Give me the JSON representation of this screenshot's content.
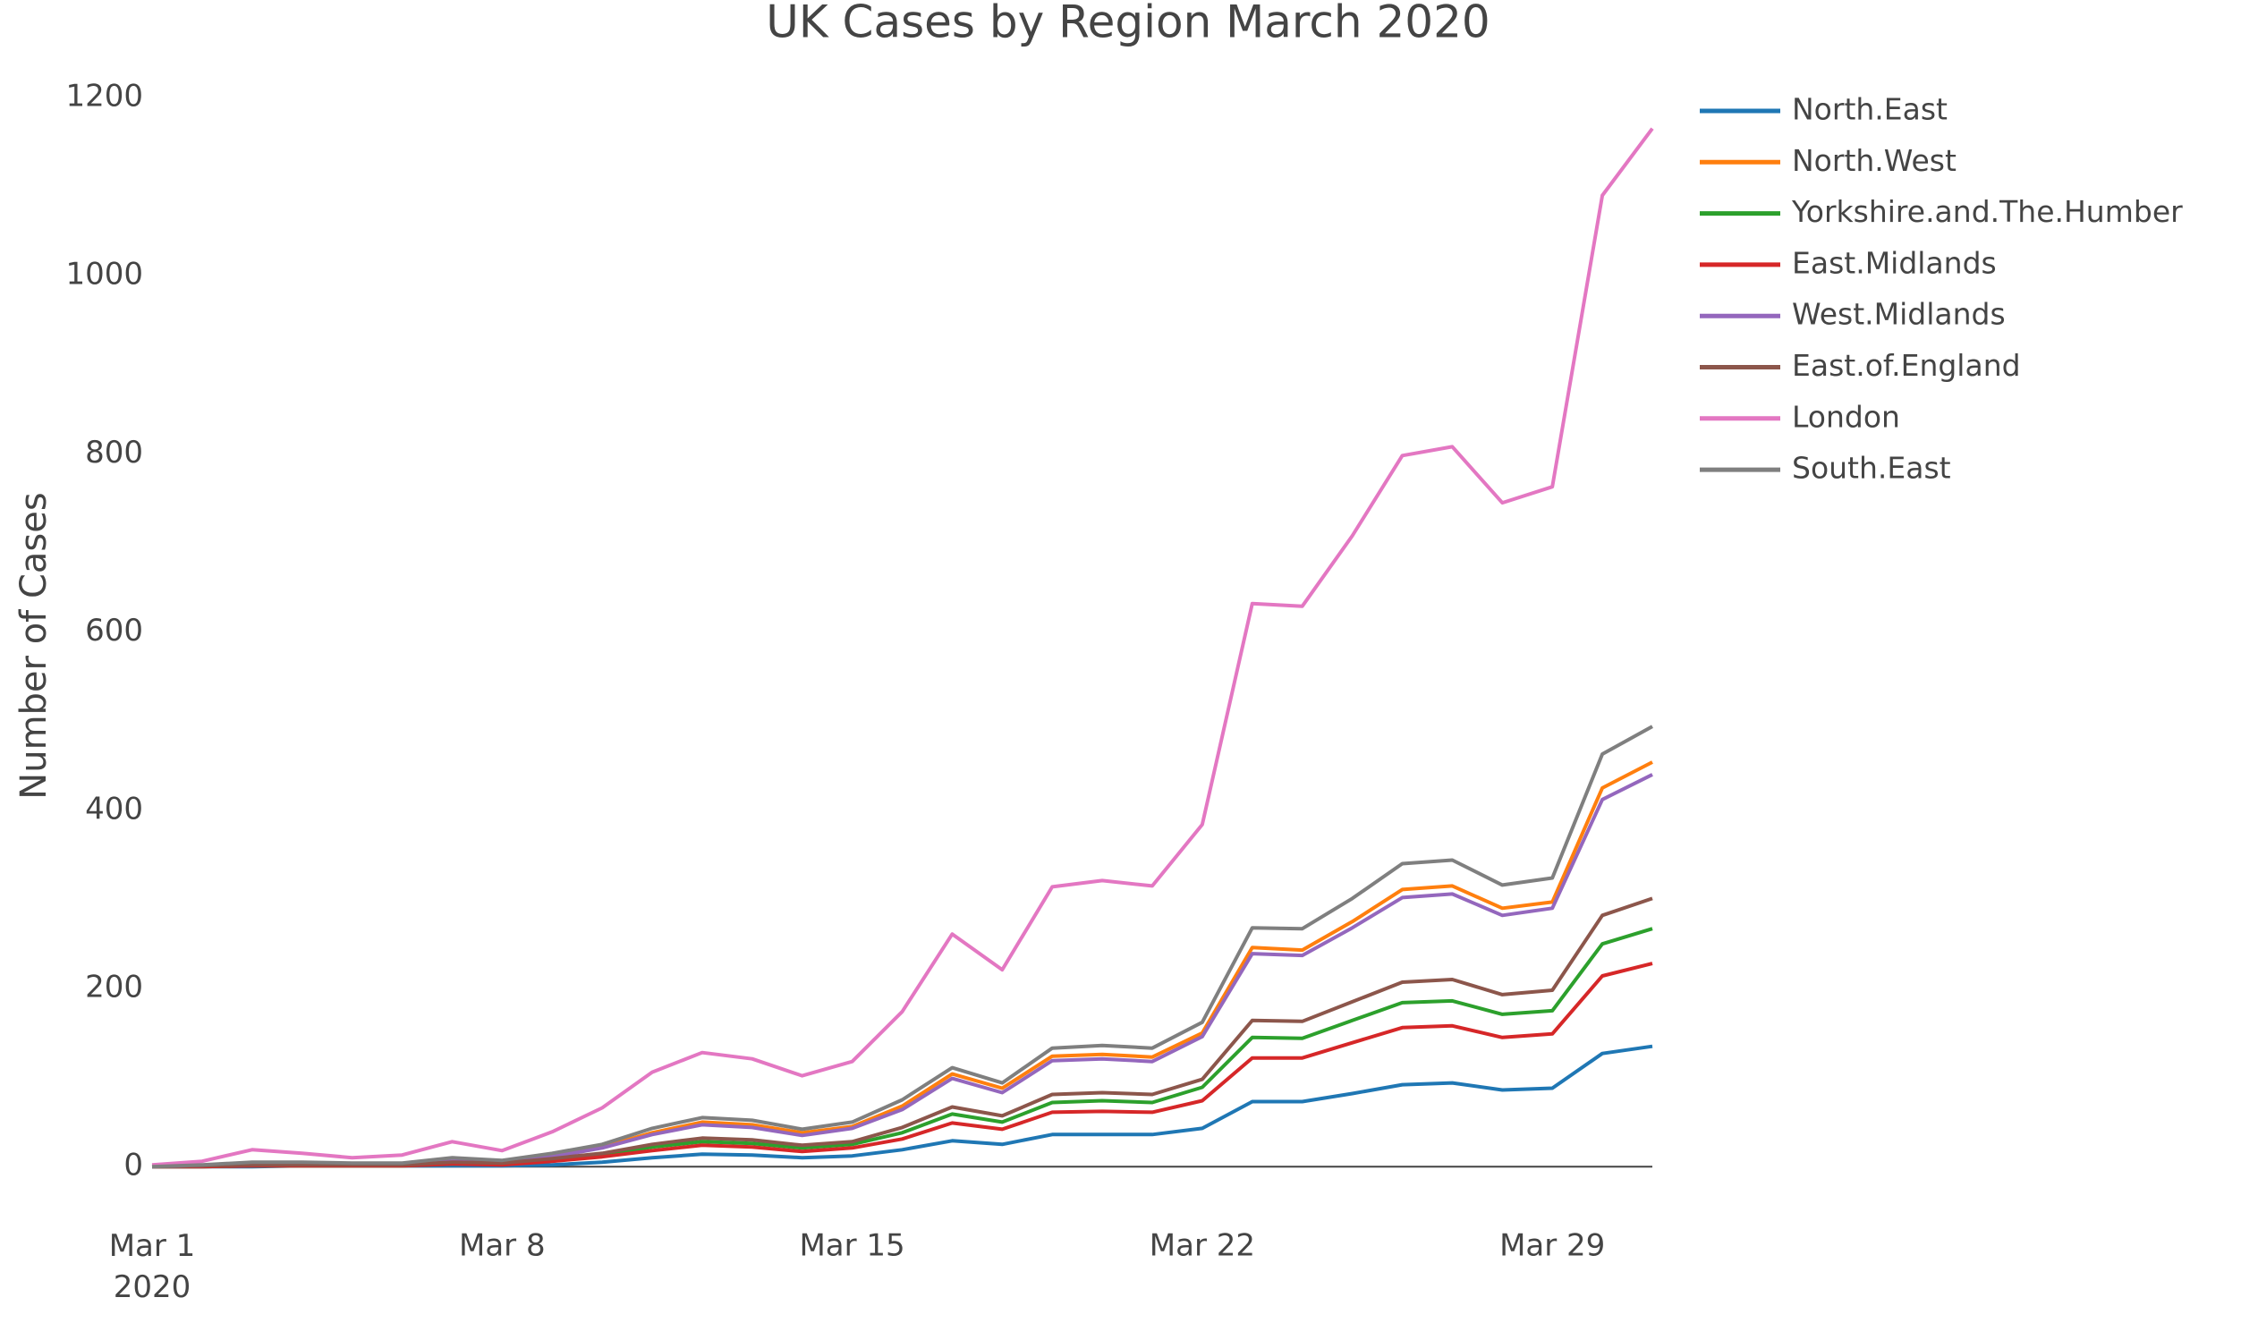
{
  "chart_data": {
    "type": "line",
    "title": "UK Cases by Region March 2020",
    "y_label": "Number of Cases",
    "x": [
      "2020-03-01",
      "2020-03-02",
      "2020-03-03",
      "2020-03-04",
      "2020-03-05",
      "2020-03-06",
      "2020-03-07",
      "2020-03-08",
      "2020-03-09",
      "2020-03-10",
      "2020-03-11",
      "2020-03-12",
      "2020-03-13",
      "2020-03-14",
      "2020-03-15",
      "2020-03-16",
      "2020-03-17",
      "2020-03-18",
      "2020-03-19",
      "2020-03-20",
      "2020-03-21",
      "2020-03-22",
      "2020-03-23",
      "2020-03-24",
      "2020-03-25",
      "2020-03-26",
      "2020-03-27",
      "2020-03-28",
      "2020-03-29",
      "2020-03-30",
      "2020-03-31"
    ],
    "xlim": [
      "2020-03-01",
      "2020-03-31"
    ],
    "xticks": [
      {
        "value": "2020-03-01",
        "label": "Mar 1\n2020"
      },
      {
        "value": "2020-03-08",
        "label": "Mar 8"
      },
      {
        "value": "2020-03-15",
        "label": "Mar 15"
      },
      {
        "value": "2020-03-22",
        "label": "Mar 22"
      },
      {
        "value": "2020-03-29",
        "label": "Mar 29"
      }
    ],
    "ylim": [
      -50,
      1230
    ],
    "yticks": [
      0,
      200,
      400,
      600,
      800,
      1000,
      1200
    ],
    "grid": false,
    "zeroline": true,
    "legend": "right",
    "series": [
      {
        "name": "North.East",
        "color": "#1f77b4",
        "values": [
          0,
          0,
          0,
          1,
          1,
          1,
          1,
          1,
          2,
          5,
          10,
          14,
          13,
          10,
          12,
          19,
          29,
          25,
          36,
          36,
          36,
          43,
          73,
          73,
          82,
          92,
          94,
          86,
          88,
          127,
          135
        ]
      },
      {
        "name": "North.West",
        "color": "#ff7f0e",
        "values": [
          0,
          1,
          3,
          3,
          3,
          3,
          6,
          5,
          12,
          22,
          38,
          50,
          47,
          38,
          45,
          68,
          104,
          88,
          124,
          126,
          123,
          150,
          246,
          243,
          275,
          311,
          315,
          290,
          297,
          425,
          454
        ]
      },
      {
        "name": "Yorkshire.and.The.Humber",
        "color": "#2ca02c",
        "values": [
          0,
          0,
          1,
          1,
          1,
          1,
          3,
          3,
          7,
          13,
          22,
          28,
          26,
          21,
          25,
          38,
          59,
          50,
          72,
          74,
          72,
          89,
          145,
          144,
          164,
          184,
          186,
          171,
          175,
          250,
          267
        ]
      },
      {
        "name": "East.Midlands",
        "color": "#d62728",
        "values": [
          0,
          0,
          1,
          1,
          1,
          1,
          3,
          2,
          6,
          11,
          18,
          24,
          22,
          17,
          21,
          31,
          49,
          42,
          61,
          62,
          61,
          74,
          122,
          122,
          139,
          156,
          158,
          145,
          149,
          214,
          228
        ]
      },
      {
        "name": "West.Midlands",
        "color": "#9467bd",
        "values": [
          0,
          1,
          3,
          3,
          3,
          3,
          6,
          5,
          11,
          21,
          36,
          47,
          44,
          35,
          43,
          64,
          99,
          83,
          119,
          121,
          118,
          146,
          239,
          237,
          268,
          302,
          306,
          282,
          290,
          412,
          440
        ]
      },
      {
        "name": "East.of.England",
        "color": "#8c564b",
        "values": [
          0,
          1,
          2,
          2,
          2,
          2,
          5,
          4,
          9,
          15,
          25,
          32,
          30,
          24,
          28,
          44,
          67,
          57,
          81,
          83,
          81,
          98,
          164,
          163,
          185,
          207,
          210,
          193,
          198,
          282,
          301
        ]
      },
      {
        "name": "London",
        "color": "#e377c2",
        "values": [
          2,
          6,
          19,
          15,
          10,
          13,
          28,
          18,
          39,
          66,
          106,
          128,
          121,
          102,
          118,
          174,
          261,
          221,
          314,
          321,
          315,
          384,
          632,
          629,
          708,
          798,
          808,
          745,
          763,
          1090,
          1165
        ]
      },
      {
        "name": "South.East",
        "color": "#7f7f7f",
        "values": [
          0,
          2,
          5,
          5,
          4,
          4,
          10,
          7,
          15,
          25,
          43,
          55,
          52,
          42,
          50,
          75,
          111,
          94,
          133,
          136,
          133,
          162,
          268,
          267,
          301,
          340,
          344,
          316,
          324,
          463,
          494
        ]
      }
    ]
  }
}
